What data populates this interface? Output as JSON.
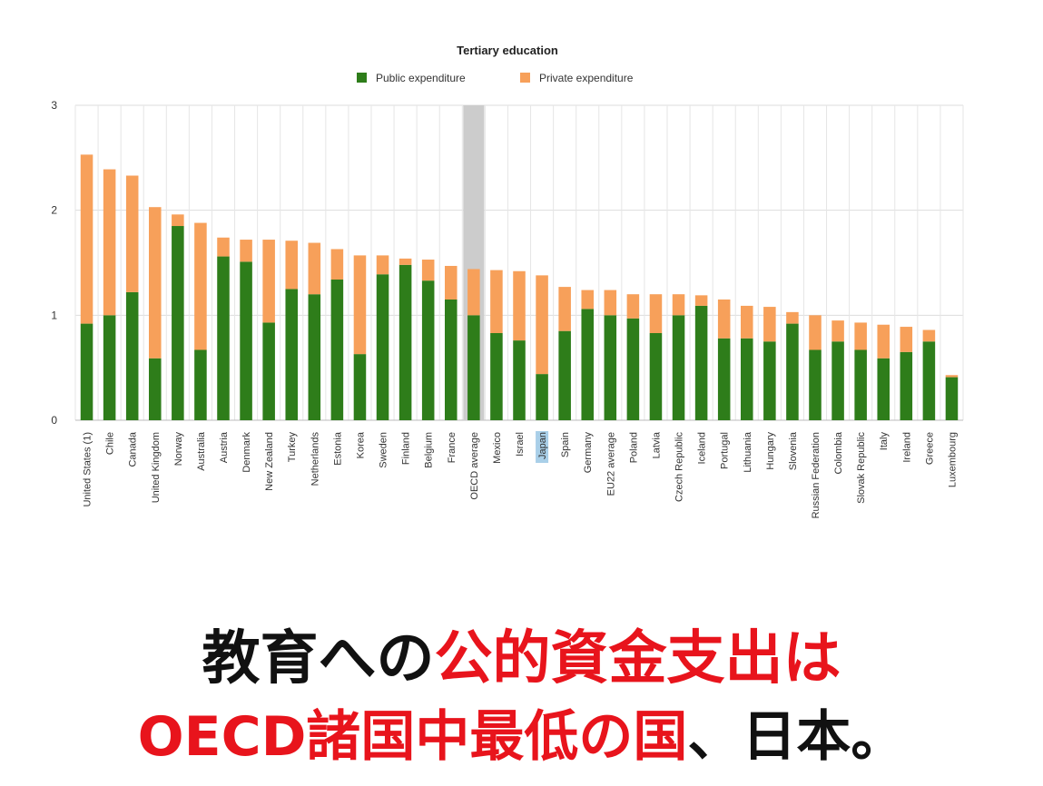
{
  "chart_data": {
    "type": "bar",
    "stacked": true,
    "title": "Tertiary education",
    "legend_position": "top",
    "ylim": [
      0,
      3
    ],
    "yticks": [
      0,
      1,
      2,
      3
    ],
    "grid": true,
    "highlight_category": "OECD average",
    "label_highlight_category": "Japan",
    "categories": [
      "United States (1)",
      "Chile",
      "Canada",
      "United Kingdom",
      "Norway",
      "Australia",
      "Austria",
      "Denmark",
      "New Zealand",
      "Turkey",
      "Netherlands",
      "Estonia",
      "Korea",
      "Sweden",
      "Finland",
      "Belgium",
      "France",
      "OECD average",
      "Mexico",
      "Israel",
      "Japan",
      "Spain",
      "Germany",
      "EU22 average",
      "Poland",
      "Latvia",
      "Czech Republic",
      "Iceland",
      "Portugal",
      "Lithuania",
      "Hungary",
      "Slovenia",
      "Russian Federation",
      "Colombia",
      "Slovak Republic",
      "Italy",
      "Ireland",
      "Greece",
      "Luxembourg"
    ],
    "series": [
      {
        "name": "Public expenditure",
        "color": "#2e7d1a",
        "values": [
          0.92,
          1.0,
          1.22,
          0.59,
          1.85,
          0.67,
          1.56,
          1.51,
          0.93,
          1.25,
          1.2,
          1.34,
          0.63,
          1.39,
          1.48,
          1.33,
          1.15,
          1.0,
          0.83,
          0.76,
          0.44,
          0.85,
          1.06,
          1.0,
          0.97,
          0.83,
          1.0,
          1.09,
          0.78,
          0.78,
          0.75,
          0.92,
          0.67,
          0.75,
          0.67,
          0.59,
          0.65,
          0.75,
          0.41
        ]
      },
      {
        "name": "Private expenditure",
        "color": "#f7a05a",
        "values": [
          1.61,
          1.39,
          1.11,
          1.44,
          0.11,
          1.21,
          0.18,
          0.21,
          0.79,
          0.46,
          0.49,
          0.29,
          0.94,
          0.18,
          0.06,
          0.2,
          0.32,
          0.44,
          0.6,
          0.66,
          0.94,
          0.42,
          0.18,
          0.24,
          0.23,
          0.37,
          0.2,
          0.1,
          0.37,
          0.31,
          0.33,
          0.11,
          0.33,
          0.2,
          0.26,
          0.32,
          0.24,
          0.11,
          0.02
        ]
      }
    ]
  },
  "caption": {
    "line1_black": "教育への",
    "line1_red": "公的資金支出は",
    "line2_red": "OECD諸国中最低の国",
    "line2_black": "、日本。"
  },
  "colors": {
    "public": "#2e7d1a",
    "private": "#f7a05a",
    "highlight": "#cccccc",
    "caption_red": "#e8141c"
  }
}
